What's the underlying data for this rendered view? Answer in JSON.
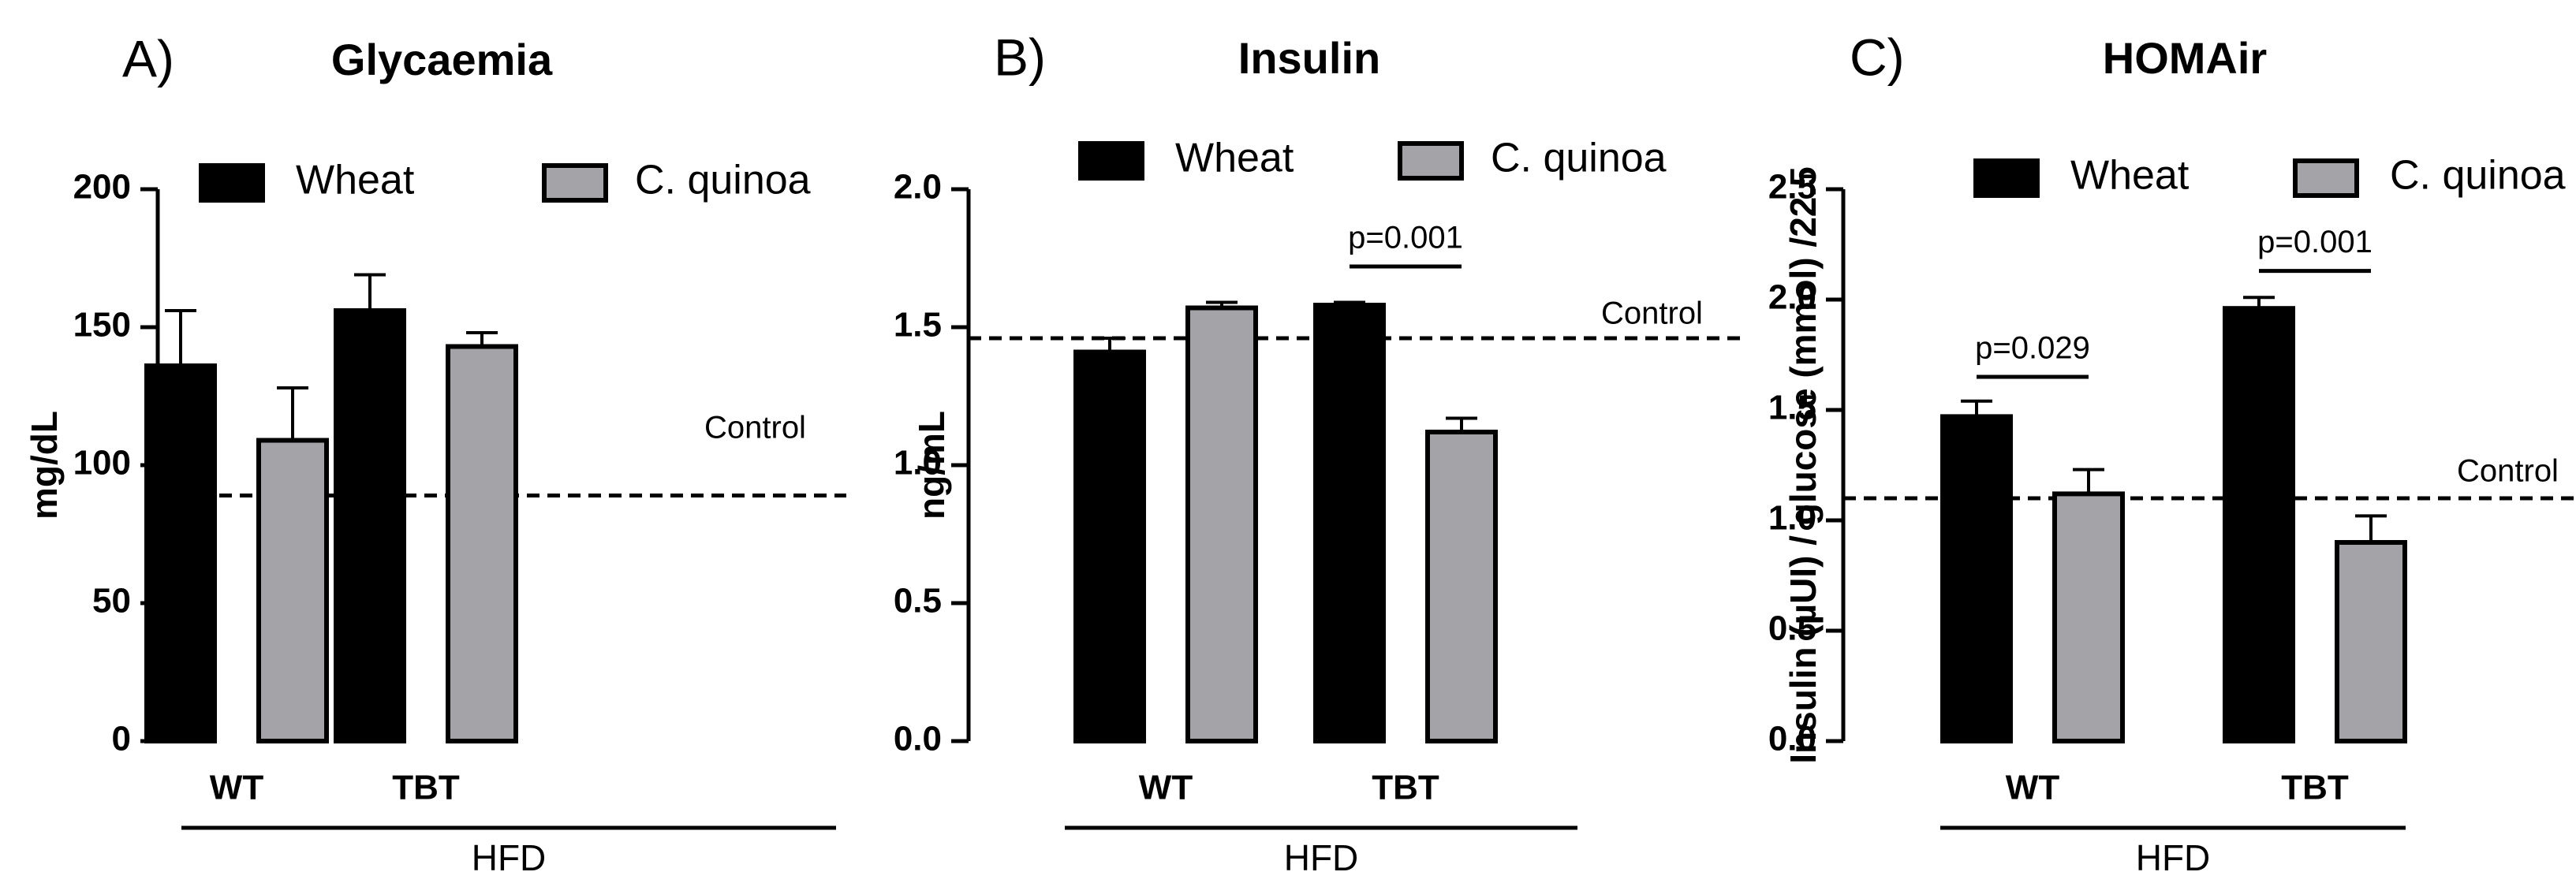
{
  "group_label": "HFD",
  "legend": {
    "wheat": "Wheat",
    "quinoa": "C. quinoa"
  },
  "colors": {
    "wheat": "#000000",
    "quinoa": "#a3a3a8",
    "bar_edge": "#000000"
  },
  "chart_data": [
    {
      "type": "bar",
      "panel": "A)",
      "title": "Glycaemia",
      "ylabel": "mg/dL",
      "ylim": [
        0,
        200
      ],
      "yticks": [
        0,
        50,
        100,
        150,
        200
      ],
      "categories": [
        "WT",
        "TBT"
      ],
      "series": [
        {
          "name": "Wheat",
          "values": [
            136,
            156
          ],
          "errors": [
            20,
            13
          ]
        },
        {
          "name": "C. quinoa",
          "values": [
            109,
            143
          ],
          "errors": [
            19,
            5
          ]
        }
      ],
      "control": {
        "label": "Control",
        "value": 89
      },
      "annotations": []
    },
    {
      "type": "bar",
      "panel": "B)",
      "title": "Insulin",
      "ylabel": "ng/mL",
      "ylim": [
        0,
        2.0
      ],
      "yticks": [
        "0.0",
        "0.5",
        "1.0",
        "1.5",
        "2.0"
      ],
      "categories": [
        "WT",
        "TBT"
      ],
      "series": [
        {
          "name": "Wheat",
          "values": [
            1.41,
            1.58
          ],
          "errors": [
            0.05,
            0.01
          ]
        },
        {
          "name": "C. quinoa",
          "values": [
            1.57,
            1.12
          ],
          "errors": [
            0.02,
            0.05
          ]
        }
      ],
      "control": {
        "label": "Control",
        "value": 1.46
      },
      "annotations": [
        {
          "text": "p=0.001",
          "category": 1,
          "y": 1.72
        }
      ]
    },
    {
      "type": "bar",
      "panel": "C)",
      "title": "HOMAir",
      "ylabel": "Insulin (µUI) / glucose (mmol) /22.5",
      "ylim": [
        0,
        2.5
      ],
      "yticks": [
        "0.0",
        "0.5",
        "1.0",
        "1.5",
        "2.0",
        "2.5"
      ],
      "categories": [
        "WT",
        "TBT"
      ],
      "series": [
        {
          "name": "Wheat",
          "values": [
            1.47,
            1.96
          ],
          "errors": [
            0.07,
            0.05
          ]
        },
        {
          "name": "C. quinoa",
          "values": [
            1.12,
            0.9
          ],
          "errors": [
            0.11,
            0.12
          ]
        }
      ],
      "control": {
        "label": "Control",
        "value": 1.1
      },
      "annotations": [
        {
          "text": "p=0.029",
          "category": 0,
          "y": 1.65
        },
        {
          "text": "p=0.001",
          "category": 1,
          "y": 2.13
        }
      ]
    }
  ]
}
